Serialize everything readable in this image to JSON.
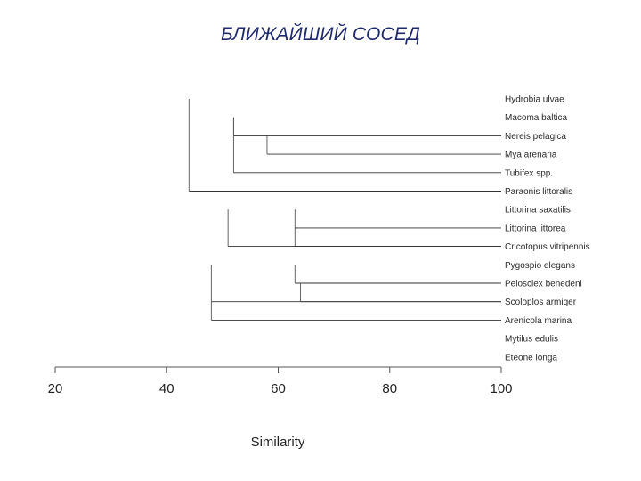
{
  "slide": {
    "title": "БЛИЖАЙШИЙ СОСЕД"
  },
  "dendrogram": {
    "method": "nearest neighbour (single linkage)",
    "axis": {
      "label": "Similarity",
      "min": 20,
      "max": 100,
      "ticks": [
        20,
        40,
        60,
        80,
        100
      ]
    },
    "leaves": [
      "Hydrobia ulvae",
      "Macoma baltica",
      "Nereis pelagica",
      "Mya arenaria",
      "Tubifex spp.",
      "Paraonis littoralis",
      "Littorina saxatilis",
      "Littorina littorea",
      "Cricotopus vitripennis",
      "Pygospio elegans",
      "Pelosclex benedeni",
      "Scoloplos armiger",
      "Arenicola marina",
      "Mytilus edulis",
      "Eteone longa"
    ],
    "merges": [
      {
        "leaves": [
          "Nereis pelagica",
          "Mya arenaria"
        ],
        "similarity": 58
      },
      {
        "leaves": [
          "Macoma baltica",
          "Nereis pelagica"
        ],
        "similarity": 52
      },
      {
        "leaves": [
          "Macoma baltica",
          "Tubifex spp."
        ],
        "similarity": 52
      },
      {
        "leaves": [
          "Littorina saxatilis",
          "Littorina littorea"
        ],
        "similarity": 63
      },
      {
        "leaves": [
          "Littorina littorea",
          "Cricotopus vitripennis"
        ],
        "similarity": 63
      },
      {
        "leaves": [
          "Littorina saxatilis",
          "Cricotopus vitripennis"
        ],
        "similarity": 51
      },
      {
        "leaves": [
          "Pygospio elegans",
          "Pelosclex benedeni"
        ],
        "similarity": 63
      },
      {
        "leaves": [
          "Pelosclex benedeni",
          "Scoloplos armiger"
        ],
        "similarity": 64
      },
      {
        "leaves": [
          "Pygospio elegans",
          "Scoloplos armiger"
        ],
        "similarity": 48
      },
      {
        "leaves": [
          "Scoloplos armiger",
          "Arenicola marina"
        ],
        "similarity": 48
      },
      {
        "leaves": [
          "Hydrobia ulvae",
          "Paraonis littoralis"
        ],
        "similarity": 44
      }
    ]
  }
}
